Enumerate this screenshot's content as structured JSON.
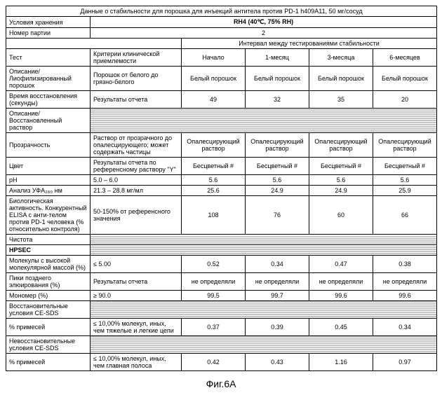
{
  "header": {
    "title": "Данные о стабильности для порошка для инъекций антитела против PD-1 h409A11, 50 мг/сосуд",
    "storage_label": "Условия хранения",
    "storage_value": "RH4 (40℃, 75% RH)",
    "batch_label": "Номер партии",
    "batch_value": "2",
    "interval_header": "Интервал между тестированиями стабильности",
    "test_col": "Тест",
    "criteria_col": "Критерии клинической приемлемости",
    "cols": [
      "Начало",
      "1-месяц",
      "3-месяца",
      "6-месяцев"
    ]
  },
  "rows": [
    {
      "label": "Описание/ Лиофилизированный порошок",
      "criteria": "Порошок от белого до грязно-белого",
      "v": [
        "Белый порошок",
        "Белый порошок",
        "Белый порошок",
        "Белый порошок"
      ],
      "hatched": false
    },
    {
      "label": "Время восстановления (секунды)",
      "criteria": "Результаты отчета",
      "v": [
        "49",
        "32",
        "35",
        "20"
      ],
      "hatched": false
    },
    {
      "label": "Описание/ Восстановленный раствор",
      "criteria": "",
      "v": [
        "",
        "",
        "",
        ""
      ],
      "hatched": true
    },
    {
      "label": "Прозрачность",
      "criteria": "Раствор от прозрачного до опалесцирующего; может содержать частицы",
      "v": [
        "Опалесцирующий раствор",
        "Опалесцирующий раствор",
        "Опалесцирующий раствор",
        "Опалесцирующий раствор"
      ],
      "hatched": false
    },
    {
      "label": "Цвет",
      "criteria": "Результаты отчета по референсному раствору \"Y\"",
      "v": [
        "Бесцветный #",
        "Бесцветный #",
        "Бесцветный #",
        "Бесцветный #"
      ],
      "hatched": false
    },
    {
      "label": "pH",
      "criteria": "5.0 – 6.0",
      "v": [
        "5.6",
        "5.6",
        "5.6",
        "5.6"
      ],
      "hatched": false
    },
    {
      "label": "Анализ УФA₂₈₀ нм",
      "criteria": "21.3 – 28.8 мг/мл",
      "v": [
        "25.6",
        "24.9",
        "24.9",
        "25.9"
      ],
      "hatched": false
    },
    {
      "label": "Биологическая активность. Конкурентный ELISA с анти-телом против PD-1 человека (% относительно контроля)",
      "criteria": "50-150% от референсного значения",
      "v": [
        "108",
        "76",
        "60",
        "66"
      ],
      "hatched": false
    },
    {
      "label": "Чистота",
      "criteria": "",
      "v": [
        "",
        "",
        "",
        ""
      ],
      "hatched": true
    },
    {
      "label": "HPSEC",
      "criteria": "",
      "v": [
        "",
        "",
        "",
        ""
      ],
      "hatched": true,
      "bold": true
    },
    {
      "label": "Молекулы с высокой молекулярной массой (%)",
      "criteria": "≤ 5.00",
      "v": [
        "0.52",
        "0.34",
        "0.47",
        "0.38"
      ],
      "hatched": false
    },
    {
      "label": "Пики позднего элюирования (%)",
      "criteria": "Результаты отчета",
      "v": [
        "не определяли",
        "не определяли",
        "не определяли",
        "не определяли"
      ],
      "hatched": false
    },
    {
      "label": "Мономер (%)",
      "criteria": "≥ 90.0",
      "v": [
        "99.5",
        "99.7",
        "99.6",
        "99.6"
      ],
      "hatched": false
    },
    {
      "label": "Восстановительные условия CE-SDS",
      "criteria": "",
      "v": [
        "",
        "",
        "",
        ""
      ],
      "hatched": true
    },
    {
      "label": "% примесей",
      "criteria": "≤ 10,00% молекул, иных, чем тяжелые и легкие цепи",
      "v": [
        "0.37",
        "0.39",
        "0.45",
        "0.34"
      ],
      "hatched": false
    },
    {
      "label": "Невосстановительные условия CE-SDS",
      "criteria": "",
      "v": [
        "",
        "",
        "",
        ""
      ],
      "hatched": true
    },
    {
      "label": "% примесей",
      "criteria": "≤ 10,00% молекул, иных, чем главная полоса",
      "v": [
        "0.42",
        "0.43",
        "1.16",
        "0.97"
      ],
      "hatched": false
    }
  ],
  "figure_label": "Фиг.6А",
  "style": {
    "font_size": 9,
    "title_font_size": 9,
    "figure_font_size": 14,
    "border_color": "#000",
    "hatched_color": "#888"
  }
}
